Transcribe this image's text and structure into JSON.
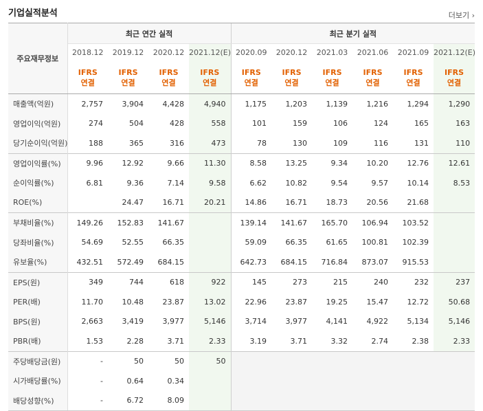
{
  "title": "기업실적분석",
  "more": "더보기",
  "more_arrow": "›",
  "header": {
    "row_label": "주요재무정보",
    "annual_label": "최근 연간 실적",
    "quarter_label": "최근 분기 실적",
    "periods": [
      "2018.12",
      "2019.12",
      "2020.12",
      "2021.12(E)",
      "2020.09",
      "2020.12",
      "2021.03",
      "2021.06",
      "2021.09",
      "2021.12(E)"
    ],
    "ifrs": "IFRS",
    "basis": "연결"
  },
  "rows": [
    {
      "label": "매출액(억원)",
      "values": [
        "2,757",
        "3,904",
        "4,428",
        "4,940",
        "1,175",
        "1,203",
        "1,139",
        "1,216",
        "1,294",
        "1,290"
      ]
    },
    {
      "label": "영업이익(억원)",
      "values": [
        "274",
        "504",
        "428",
        "558",
        "101",
        "159",
        "106",
        "124",
        "165",
        "163"
      ]
    },
    {
      "label": "당기순이익(억원)",
      "values": [
        "188",
        "365",
        "316",
        "473",
        "78",
        "130",
        "109",
        "116",
        "131",
        "110"
      ]
    },
    {
      "label": "영업이익률(%)",
      "values": [
        "9.96",
        "12.92",
        "9.66",
        "11.30",
        "8.58",
        "13.25",
        "9.34",
        "10.20",
        "12.76",
        "12.61"
      ]
    },
    {
      "label": "순이익률(%)",
      "values": [
        "6.81",
        "9.36",
        "7.14",
        "9.58",
        "6.62",
        "10.82",
        "9.54",
        "9.57",
        "10.14",
        "8.53"
      ]
    },
    {
      "label": "ROE(%)",
      "values": [
        "",
        "24.47",
        "16.71",
        "20.21",
        "14.86",
        "16.71",
        "18.73",
        "20.56",
        "21.68",
        ""
      ]
    },
    {
      "label": "부채비율(%)",
      "values": [
        "149.26",
        "152.83",
        "141.67",
        "",
        "139.14",
        "141.67",
        "165.70",
        "106.94",
        "103.52",
        ""
      ]
    },
    {
      "label": "당좌비율(%)",
      "values": [
        "54.69",
        "52.55",
        "66.35",
        "",
        "59.09",
        "66.35",
        "61.65",
        "100.81",
        "102.39",
        ""
      ]
    },
    {
      "label": "유보율(%)",
      "values": [
        "432.51",
        "572.49",
        "684.15",
        "",
        "642.73",
        "684.15",
        "716.84",
        "873.07",
        "915.53",
        ""
      ]
    },
    {
      "label": "EPS(원)",
      "values": [
        "349",
        "744",
        "618",
        "922",
        "145",
        "273",
        "215",
        "240",
        "232",
        "237"
      ]
    },
    {
      "label": "PER(배)",
      "values": [
        "11.70",
        "10.48",
        "23.87",
        "13.02",
        "22.96",
        "23.87",
        "19.25",
        "15.47",
        "12.72",
        "50.68"
      ]
    },
    {
      "label": "BPS(원)",
      "values": [
        "2,663",
        "3,419",
        "3,977",
        "5,146",
        "3,714",
        "3,977",
        "4,141",
        "4,922",
        "5,134",
        "5,146"
      ]
    },
    {
      "label": "PBR(배)",
      "values": [
        "1.53",
        "2.28",
        "3.71",
        "2.33",
        "3.19",
        "3.71",
        "3.32",
        "2.74",
        "2.38",
        "2.33"
      ]
    },
    {
      "label": "주당배당금(원)",
      "values": [
        "-",
        "50",
        "50",
        "50",
        "",
        "",
        "",
        "",
        "",
        ""
      ]
    },
    {
      "label": "시가배당률(%)",
      "values": [
        "-",
        "0.64",
        "0.34",
        "",
        "",
        "",
        "",
        "",
        "",
        ""
      ]
    },
    {
      "label": "배당성향(%)",
      "values": [
        "-",
        "6.72",
        "8.09",
        "",
        "",
        "",
        "",
        "",
        "",
        ""
      ]
    }
  ]
}
